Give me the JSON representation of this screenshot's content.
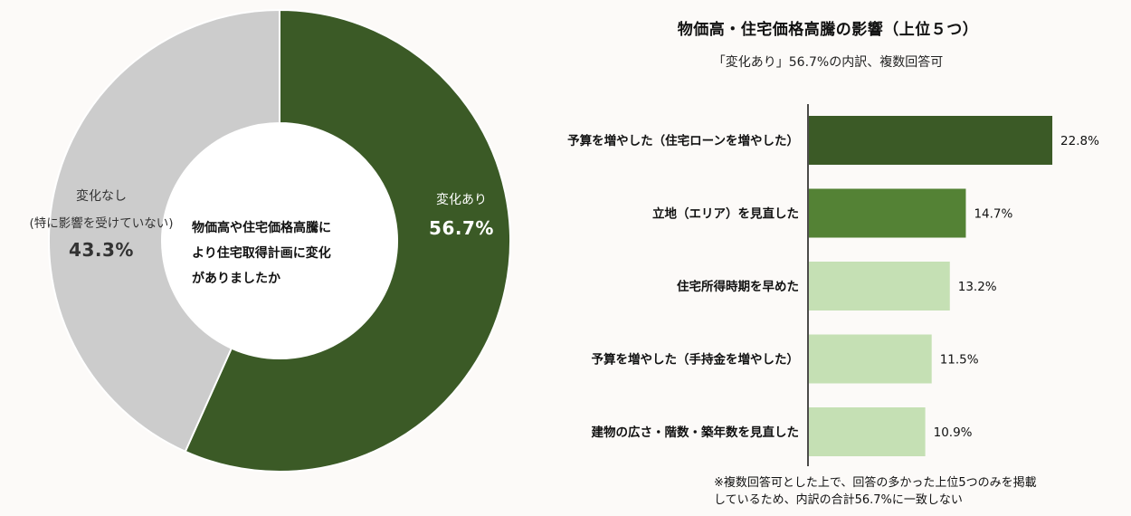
{
  "chart_data": [
    {
      "type": "pie",
      "variant": "donut",
      "center_text": [
        "物価高や住宅価格高騰に",
        "より住宅取得計画に変化",
        "がありましたか"
      ],
      "slices": [
        {
          "name": "変化あり",
          "value": 56.7,
          "value_label": "56.7%",
          "color": "#3b5a26"
        },
        {
          "name_lines": [
            "変化なし",
            "(特に影響を受けていない)"
          ],
          "value": 43.3,
          "value_label": "43.3%",
          "color": "#cccccc"
        }
      ]
    },
    {
      "type": "bar",
      "orientation": "horizontal",
      "title": "物価高・住宅価格高騰の影響（上位５つ）",
      "subtitle": "「変化あり」56.7%の内訳、複数回答可",
      "categories": [
        "予算を増やした（住宅ローンを増やした）",
        "立地（エリア）を見直した",
        "住宅所得時期を早めた",
        "予算を増やした（手持金を増やした）",
        "建物の広さ・階数・築年数を見直した"
      ],
      "values": [
        22.8,
        14.7,
        13.2,
        11.5,
        10.9
      ],
      "value_labels": [
        "22.8%",
        "14.7%",
        "13.2%",
        "11.5%",
        "10.9%"
      ],
      "colors": [
        "#3b5a26",
        "#548235",
        "#c5e0b4",
        "#c5e0b4",
        "#c5e0b4"
      ],
      "footnote": [
        "※複数回答可とした上で、回答の多かった上位5つのみを掲載",
        "しているため、内訳の合計56.7%に一致しない"
      ]
    }
  ]
}
